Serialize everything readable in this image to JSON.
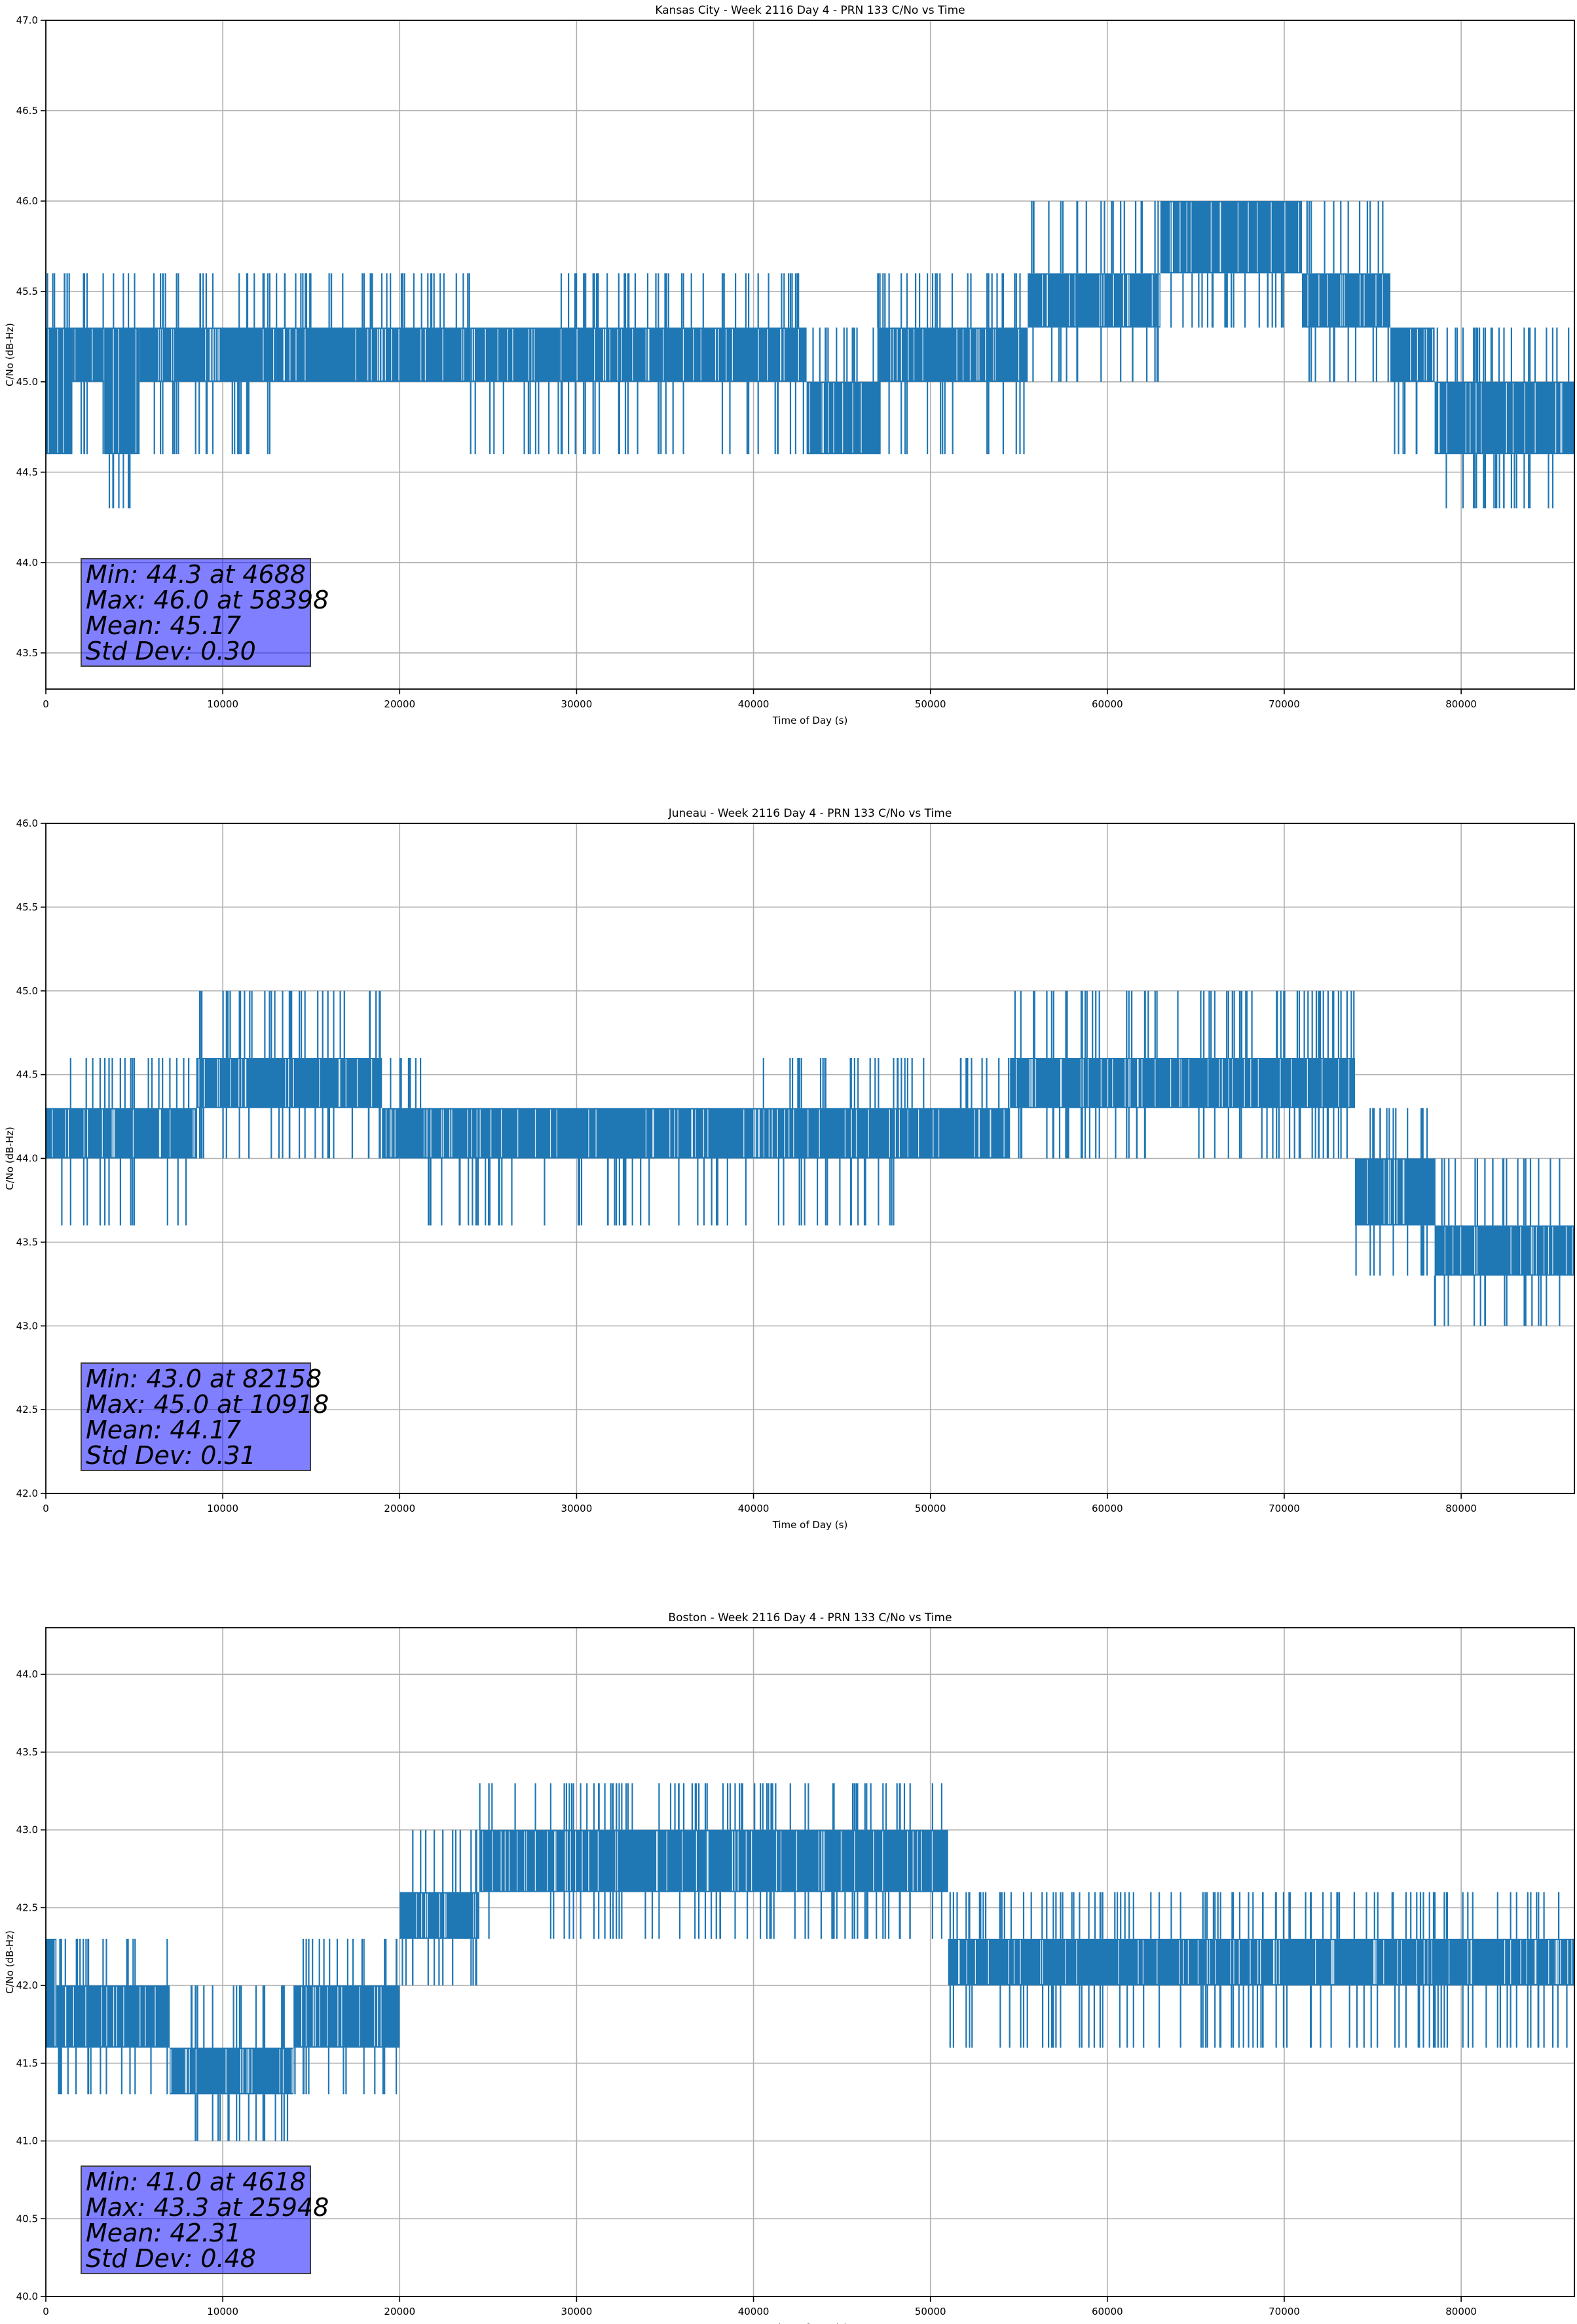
{
  "chart_data": [
    {
      "type": "line",
      "title": "Kansas City - Week 2116 Day 4 - PRN 133 C/No vs Time",
      "xlabel": "Time of Day (s)",
      "ylabel": "C/No (dB-Hz)",
      "xlim": [
        0,
        86400
      ],
      "ylim": [
        43.3,
        47.0
      ],
      "xticks": [
        0,
        10000,
        20000,
        30000,
        40000,
        50000,
        60000,
        70000,
        80000
      ],
      "yticks": [
        43.5,
        44.0,
        44.5,
        45.0,
        45.5,
        46.0,
        46.5,
        47.0
      ],
      "grid": true,
      "color": "#1f77b4",
      "stats": [
        "Min: 44.3 at 4688",
        "Max: 46.0 at 58398",
        "Mean: 45.17",
        "Std Dev: 0.30"
      ],
      "segments": [
        {
          "x": [
            0,
            1500
          ],
          "band": [
            44.6,
            45.3
          ],
          "spikes_up": [
            45.6
          ],
          "spikes_down": []
        },
        {
          "x": [
            1500,
            3300
          ],
          "band": [
            45.0,
            45.3
          ],
          "spikes_up": [
            45.6
          ],
          "spikes_down": [
            44.6
          ]
        },
        {
          "x": [
            3300,
            5300
          ],
          "band": [
            44.6,
            45.3
          ],
          "spikes_up": [
            45.6
          ],
          "spikes_down": [
            44.3
          ]
        },
        {
          "x": [
            5300,
            6700
          ],
          "band": [
            45.0,
            45.3
          ],
          "spikes_up": [
            45.6
          ],
          "spikes_down": [
            44.6
          ]
        },
        {
          "x": [
            6700,
            13000
          ],
          "band": [
            45.0,
            45.3
          ],
          "spikes_up": [
            45.6
          ],
          "spikes_down": [
            44.6
          ]
        },
        {
          "x": [
            13000,
            24000
          ],
          "band": [
            45.0,
            45.3
          ],
          "spikes_up": [
            45.6
          ],
          "spikes_down": []
        },
        {
          "x": [
            24000,
            29000
          ],
          "band": [
            45.0,
            45.3
          ],
          "spikes_up": [],
          "spikes_down": [
            44.6
          ]
        },
        {
          "x": [
            29000,
            43000
          ],
          "band": [
            45.0,
            45.3
          ],
          "spikes_up": [
            45.6
          ],
          "spikes_down": [
            44.6
          ]
        },
        {
          "x": [
            43000,
            47000
          ],
          "band": [
            44.6,
            45.0
          ],
          "spikes_up": [
            45.3
          ],
          "spikes_down": []
        },
        {
          "x": [
            47000,
            55500
          ],
          "band": [
            45.0,
            45.3
          ],
          "spikes_up": [
            45.6
          ],
          "spikes_down": [
            44.6
          ]
        },
        {
          "x": [
            55500,
            63000
          ],
          "band": [
            45.3,
            45.6
          ],
          "spikes_up": [
            46.0
          ],
          "spikes_down": [
            45.0
          ]
        },
        {
          "x": [
            63000,
            71000
          ],
          "band": [
            45.6,
            46.0
          ],
          "spikes_up": [],
          "spikes_down": [
            45.3
          ]
        },
        {
          "x": [
            71000,
            76000
          ],
          "band": [
            45.3,
            45.6
          ],
          "spikes_up": [
            46.0
          ],
          "spikes_down": [
            45.0
          ]
        },
        {
          "x": [
            76000,
            78500
          ],
          "band": [
            45.0,
            45.3
          ],
          "spikes_up": [],
          "spikes_down": [
            44.6
          ]
        },
        {
          "x": [
            78500,
            86400
          ],
          "band": [
            44.6,
            45.0
          ],
          "spikes_up": [
            45.3
          ],
          "spikes_down": [
            44.3
          ]
        }
      ]
    },
    {
      "type": "line",
      "title": "Juneau - Week 2116 Day 4 - PRN 133 C/No vs Time",
      "xlabel": "Time of Day (s)",
      "ylabel": "C/No (dB-Hz)",
      "xlim": [
        0,
        86400
      ],
      "ylim": [
        42.0,
        46.0
      ],
      "xticks": [
        0,
        10000,
        20000,
        30000,
        40000,
        50000,
        60000,
        70000,
        80000
      ],
      "yticks": [
        42.0,
        42.5,
        43.0,
        43.5,
        44.0,
        44.5,
        45.0,
        45.5,
        46.0
      ],
      "grid": true,
      "color": "#1f77b4",
      "stats": [
        "Min: 43.0 at 82158",
        "Max: 45.0 at 10918",
        "Mean: 44.17",
        "Std Dev: 0.31"
      ],
      "segments": [
        {
          "x": [
            0,
            8500
          ],
          "band": [
            44.0,
            44.3
          ],
          "spikes_up": [
            44.6
          ],
          "spikes_down": [
            43.6
          ]
        },
        {
          "x": [
            8500,
            19000
          ],
          "band": [
            44.3,
            44.6
          ],
          "spikes_up": [
            45.0
          ],
          "spikes_down": [
            44.0
          ]
        },
        {
          "x": [
            19000,
            21500
          ],
          "band": [
            44.0,
            44.3
          ],
          "spikes_up": [
            44.6
          ],
          "spikes_down": []
        },
        {
          "x": [
            21500,
            40500
          ],
          "band": [
            44.0,
            44.3
          ],
          "spikes_up": [],
          "spikes_down": [
            43.6
          ]
        },
        {
          "x": [
            40500,
            48000
          ],
          "band": [
            44.0,
            44.3
          ],
          "spikes_up": [
            44.6
          ],
          "spikes_down": [
            43.6
          ]
        },
        {
          "x": [
            48000,
            54500
          ],
          "band": [
            44.0,
            44.3
          ],
          "spikes_up": [
            44.6
          ],
          "spikes_down": []
        },
        {
          "x": [
            54500,
            74000
          ],
          "band": [
            44.3,
            44.6
          ],
          "spikes_up": [
            45.0
          ],
          "spikes_down": [
            44.0
          ]
        },
        {
          "x": [
            74000,
            78500
          ],
          "band": [
            43.6,
            44.0
          ],
          "spikes_up": [
            44.3
          ],
          "spikes_down": [
            43.3
          ]
        },
        {
          "x": [
            78500,
            86400
          ],
          "band": [
            43.3,
            43.6
          ],
          "spikes_up": [
            44.0
          ],
          "spikes_down": [
            43.0
          ]
        }
      ]
    },
    {
      "type": "line",
      "title": "Boston - Week 2116 Day 4 - PRN 133 C/No vs Time",
      "xlabel": "Time of Day (s)",
      "ylabel": "C/No (dB-Hz)",
      "xlim": [
        0,
        86400
      ],
      "ylim": [
        40.0,
        44.3
      ],
      "xticks": [
        0,
        10000,
        20000,
        30000,
        40000,
        50000,
        60000,
        70000,
        80000
      ],
      "yticks": [
        40.0,
        40.5,
        41.0,
        41.5,
        42.0,
        42.5,
        43.0,
        43.5,
        44.0
      ],
      "grid": true,
      "color": "#1f77b4",
      "stats": [
        "Min: 41.0 at 4618",
        "Max: 43.3 at 25948",
        "Mean: 42.31",
        "Std Dev: 0.48"
      ],
      "segments": [
        {
          "x": [
            0,
            600
          ],
          "band": [
            41.6,
            42.3
          ],
          "spikes_up": [],
          "spikes_down": []
        },
        {
          "x": [
            600,
            7000
          ],
          "band": [
            41.6,
            42.0
          ],
          "spikes_up": [
            42.3
          ],
          "spikes_down": [
            41.3
          ]
        },
        {
          "x": [
            7000,
            14000
          ],
          "band": [
            41.3,
            41.6
          ],
          "spikes_up": [
            42.0
          ],
          "spikes_down": [
            41.0
          ]
        },
        {
          "x": [
            14000,
            20000
          ],
          "band": [
            41.6,
            42.0
          ],
          "spikes_up": [
            42.3
          ],
          "spikes_down": [
            41.3
          ]
        },
        {
          "x": [
            20000,
            24500
          ],
          "band": [
            42.3,
            42.6
          ],
          "spikes_up": [
            43.0
          ],
          "spikes_down": [
            42.0
          ]
        },
        {
          "x": [
            24500,
            51000
          ],
          "band": [
            42.6,
            43.0
          ],
          "spikes_up": [
            43.3
          ],
          "spikes_down": [
            42.3
          ]
        },
        {
          "x": [
            51000,
            86400
          ],
          "band": [
            42.0,
            42.3
          ],
          "spikes_up": [
            42.6
          ],
          "spikes_down": [
            41.6
          ]
        }
      ]
    }
  ]
}
